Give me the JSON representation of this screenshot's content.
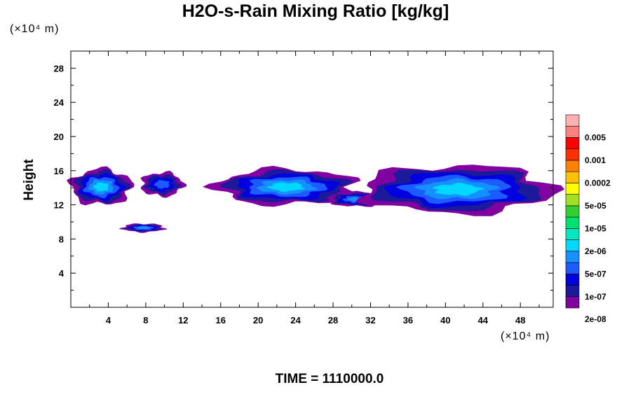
{
  "chart_data": {
    "type": "heatmap",
    "title": "H2O-s-Rain Mixing Ratio [kg/kg]",
    "ylabel": "Height",
    "xlabel": "",
    "x_unit": "(×10⁴ m)",
    "y_unit": "(×10⁴ m)",
    "footer": "TIME = 1110000.0",
    "xlim": [
      0,
      51.5
    ],
    "ylim": [
      0,
      30
    ],
    "x_ticks": [
      4,
      8,
      12,
      16,
      20,
      24,
      28,
      32,
      36,
      40,
      44,
      48
    ],
    "y_ticks": [
      4,
      8,
      12,
      16,
      20,
      24,
      28
    ],
    "grid": false,
    "colorbar": {
      "labels": [
        "0.005",
        "0.001",
        "0.0002",
        "5e-05",
        "1e-05",
        "2e-06",
        "5e-07",
        "1e-07",
        "2e-08"
      ],
      "colors": [
        "#8000a0",
        "#1a1a9a",
        "#0000e0",
        "#1c5cff",
        "#1490ff",
        "#00d8ff",
        "#00e8c0",
        "#00e070",
        "#30d030",
        "#a0e020",
        "#ffff00",
        "#ffc000",
        "#ff8000",
        "#ff3000",
        "#ff0000",
        "#ff8080",
        "#ffb0b0"
      ]
    },
    "features": [
      {
        "x_range": [
          0.0,
          6.5
        ],
        "y_range": [
          12.0,
          16.2
        ],
        "peak": "1e-05"
      },
      {
        "x_range": [
          7.5,
          12.0
        ],
        "y_range": [
          13.0,
          15.8
        ],
        "peak": "5e-07"
      },
      {
        "x_range": [
          5.5,
          10.0
        ],
        "y_range": [
          8.8,
          9.8
        ],
        "peak": "2e-06"
      },
      {
        "x_range": [
          15.5,
          30.5
        ],
        "y_range": [
          12.0,
          16.2
        ],
        "peak": "1e-05"
      },
      {
        "x_range": [
          27.5,
          33.5
        ],
        "y_range": [
          11.8,
          13.5
        ],
        "peak": "2e-06"
      },
      {
        "x_range": [
          31.0,
          51.5
        ],
        "y_range": [
          11.0,
          16.6
        ],
        "peak": "1e-05"
      }
    ]
  }
}
